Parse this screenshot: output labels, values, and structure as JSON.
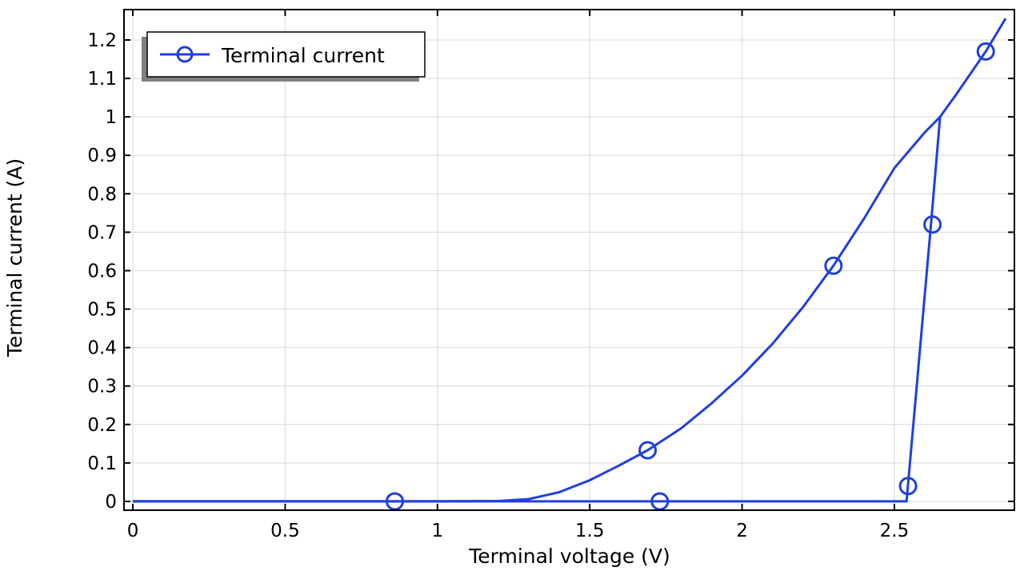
{
  "chart_data": {
    "type": "line",
    "title": "",
    "xlabel": "Terminal voltage (V)",
    "ylabel": "Terminal current (A)",
    "xlim": [
      -0.029,
      2.894
    ],
    "ylim": [
      -0.023,
      1.279
    ],
    "xticks": [
      0,
      0.5,
      1,
      1.5,
      2,
      2.5
    ],
    "xtick_labels": [
      "0",
      "0.5",
      "1",
      "1.5",
      "2",
      "2.5"
    ],
    "yticks": [
      0,
      0.1,
      0.2,
      0.3,
      0.4,
      0.5,
      0.6,
      0.7,
      0.8,
      0.9,
      1,
      1.1,
      1.2
    ],
    "ytick_labels": [
      "0",
      "0.1",
      "0.2",
      "0.3",
      "0.4",
      "0.5",
      "0.6",
      "0.7",
      "0.8",
      "0.9",
      "1",
      "1.1",
      "1.2"
    ],
    "grid": true,
    "legend": {
      "placement": "top-left",
      "entries": [
        "Terminal current"
      ]
    },
    "color": "#1f3fe0",
    "series": [
      {
        "name": "Terminal current",
        "branches": [
          {
            "x": [
              0,
              1.0,
              1.2,
              1.3,
              1.4,
              1.5,
              1.6,
              1.69,
              1.8,
              1.9,
              2.0,
              2.1,
              2.2,
              2.3,
              2.4,
              2.5,
              2.6,
              2.65,
              2.7,
              2.8,
              2.865
            ],
            "y": [
              0,
              0,
              0.001,
              0.006,
              0.024,
              0.055,
              0.095,
              0.133,
              0.19,
              0.255,
              0.327,
              0.41,
              0.505,
              0.613,
              0.735,
              0.867,
              0.96,
              1.0,
              1.055,
              1.17,
              1.256
            ]
          },
          {
            "x": [
              0,
              1.73,
              2.54,
              2.62,
              2.65
            ],
            "y": [
              0,
              0,
              0.0,
              0.72,
              1.0
            ]
          }
        ],
        "markers": {
          "x": [
            0.86,
            1.69,
            2.3,
            2.8,
            1.73,
            2.545,
            2.625
          ],
          "y": [
            0,
            0.133,
            0.613,
            1.17,
            0,
            0.04,
            0.72
          ]
        }
      }
    ]
  }
}
